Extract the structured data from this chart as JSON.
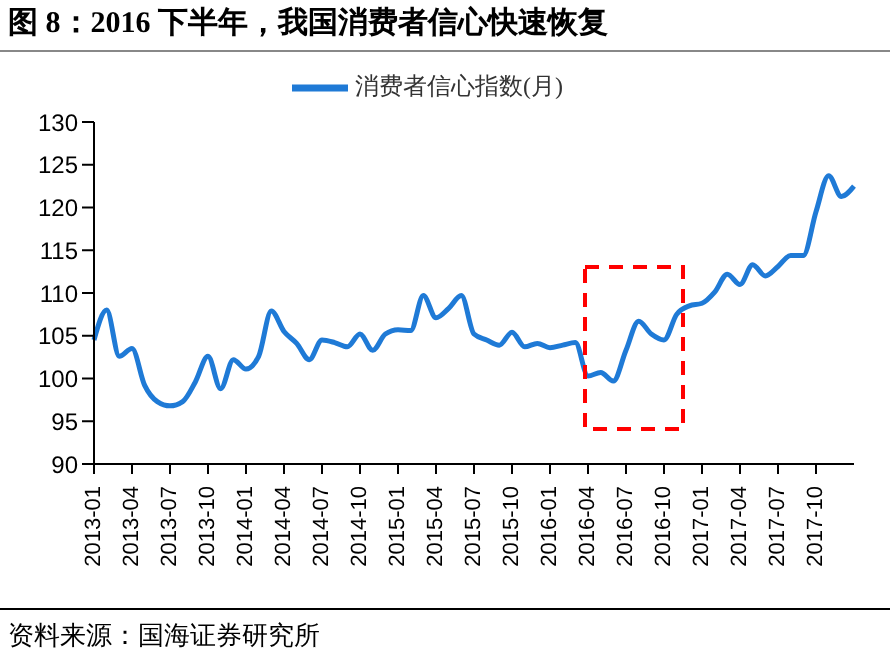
{
  "chart_data": {
    "type": "line",
    "title": "图 8：2016 下半年，我国消费者信心快速恢复",
    "categories": [
      "2013-01",
      null,
      null,
      "2013-04",
      null,
      null,
      "2013-07",
      null,
      null,
      "2013-10",
      null,
      null,
      "2014-01",
      null,
      null,
      "2014-04",
      null,
      null,
      "2014-07",
      null,
      null,
      "2014-10",
      null,
      null,
      "2015-01",
      null,
      null,
      "2015-04",
      null,
      null,
      "2015-07",
      null,
      null,
      "2015-10",
      null,
      null,
      "2016-01",
      null,
      null,
      "2016-04",
      null,
      null,
      "2016-07",
      null,
      null,
      "2016-10",
      null,
      null,
      "2017-01",
      null,
      null,
      "2017-04",
      null,
      null,
      "2017-07",
      null,
      null,
      "2017-10",
      null,
      null,
      null
    ],
    "series": [
      {
        "name": "消费者信心指数(月)",
        "color": "#1f7ad6",
        "values": [
          104.5,
          108.0,
          102.6,
          103.5,
          99.2,
          97.3,
          96.8,
          97.3,
          99.6,
          102.6,
          98.8,
          102.2,
          101.1,
          102.6,
          107.9,
          105.5,
          104.1,
          102.2,
          104.5,
          104.2,
          103.7,
          105.2,
          103.3,
          105.2,
          105.7,
          105.6,
          109.7,
          107.1,
          108.2,
          109.7,
          105.2,
          104.5,
          103.9,
          105.4,
          103.7,
          104.1,
          103.6,
          103.9,
          104.2,
          100.3,
          100.7,
          99.7,
          103.3,
          106.7,
          105.2,
          104.5,
          107.5,
          108.5,
          108.8,
          110.1,
          112.2,
          111.0,
          113.3,
          112.0,
          113.1,
          114.4,
          114.4,
          119.5,
          123.7,
          121.3,
          122.5
        ]
      }
    ],
    "ylim": [
      90,
      130
    ],
    "yticks": [
      90,
      95,
      100,
      105,
      110,
      115,
      120,
      125,
      130
    ],
    "legend": "top",
    "marker": "none",
    "line_style": "solid",
    "annotations": [
      "资料来源：国海证券研究所"
    ]
  }
}
